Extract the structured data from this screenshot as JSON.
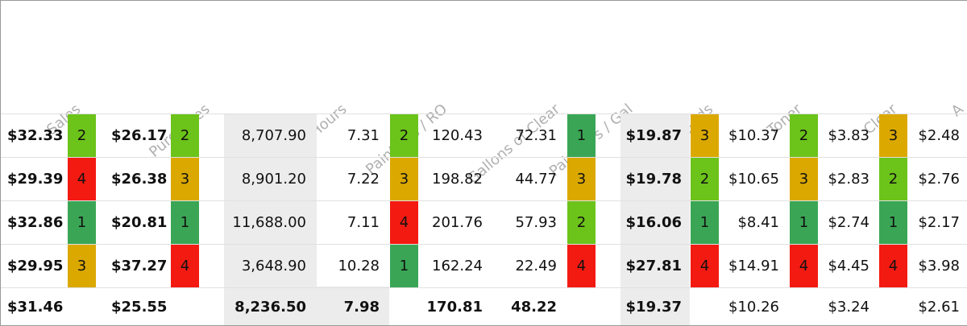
{
  "headers": {
    "sales": "Sales",
    "purchases": "Purchases",
    "paint_hours": "Paint Hours",
    "paint_hrs_ro": "Paint Hrs / RO",
    "gallons_clear": "Gallons of Clear",
    "paint_hrs_gal": "Paint Hrs / Gal",
    "liquids": "Liquids",
    "toner": "Toner",
    "clear": "Clear",
    "extra": "A"
  },
  "rows": [
    {
      "sales": "$32.33",
      "sales_rank": "2",
      "purchases": "$26.17",
      "purchases_rank": "2",
      "paint_hours": "8,707.90",
      "paint_hrs_ro": "7.31",
      "paint_hrs_ro_rank": "2",
      "gallons_clear": "120.43",
      "paint_hrs_gal": "72.31",
      "paint_hrs_gal_rank": "1",
      "liquids": "$19.87",
      "liquids_rank": "3",
      "toner": "$10.37",
      "toner_rank": "2",
      "clear": "$3.83",
      "clear_rank": "3",
      "extra": "$2.48"
    },
    {
      "sales": "$29.39",
      "sales_rank": "4",
      "purchases": "$26.38",
      "purchases_rank": "3",
      "paint_hours": "8,901.20",
      "paint_hrs_ro": "7.22",
      "paint_hrs_ro_rank": "3",
      "gallons_clear": "198.82",
      "paint_hrs_gal": "44.77",
      "paint_hrs_gal_rank": "3",
      "liquids": "$19.78",
      "liquids_rank": "2",
      "toner": "$10.65",
      "toner_rank": "3",
      "clear": "$2.83",
      "clear_rank": "2",
      "extra": "$2.76"
    },
    {
      "sales": "$32.86",
      "sales_rank": "1",
      "purchases": "$20.81",
      "purchases_rank": "1",
      "paint_hours": "11,688.00",
      "paint_hrs_ro": "7.11",
      "paint_hrs_ro_rank": "4",
      "gallons_clear": "201.76",
      "paint_hrs_gal": "57.93",
      "paint_hrs_gal_rank": "2",
      "liquids": "$16.06",
      "liquids_rank": "1",
      "toner": "$8.41",
      "toner_rank": "1",
      "clear": "$2.74",
      "clear_rank": "1",
      "extra": "$2.17"
    },
    {
      "sales": "$29.95",
      "sales_rank": "3",
      "purchases": "$37.27",
      "purchases_rank": "4",
      "paint_hours": "3,648.90",
      "paint_hrs_ro": "10.28",
      "paint_hrs_ro_rank": "1",
      "gallons_clear": "162.24",
      "paint_hrs_gal": "22.49",
      "paint_hrs_gal_rank": "4",
      "liquids": "$27.81",
      "liquids_rank": "4",
      "toner": "$14.91",
      "toner_rank": "4",
      "clear": "$4.45",
      "clear_rank": "4",
      "extra": "$3.98"
    }
  ],
  "totals": {
    "sales": "$31.46",
    "purchases": "$25.55",
    "paint_hours": "8,236.50",
    "paint_hrs_ro": "7.98",
    "gallons_clear": "170.81",
    "paint_hrs_gal": "48.22",
    "liquids": "$19.37",
    "toner": "$10.26",
    "clear": "$3.24",
    "extra": "$2.61"
  },
  "rank_colors": {
    "1": "#3aa655",
    "2": "#6cc31a",
    "3": "#dba800",
    "4": "#f31a12"
  }
}
